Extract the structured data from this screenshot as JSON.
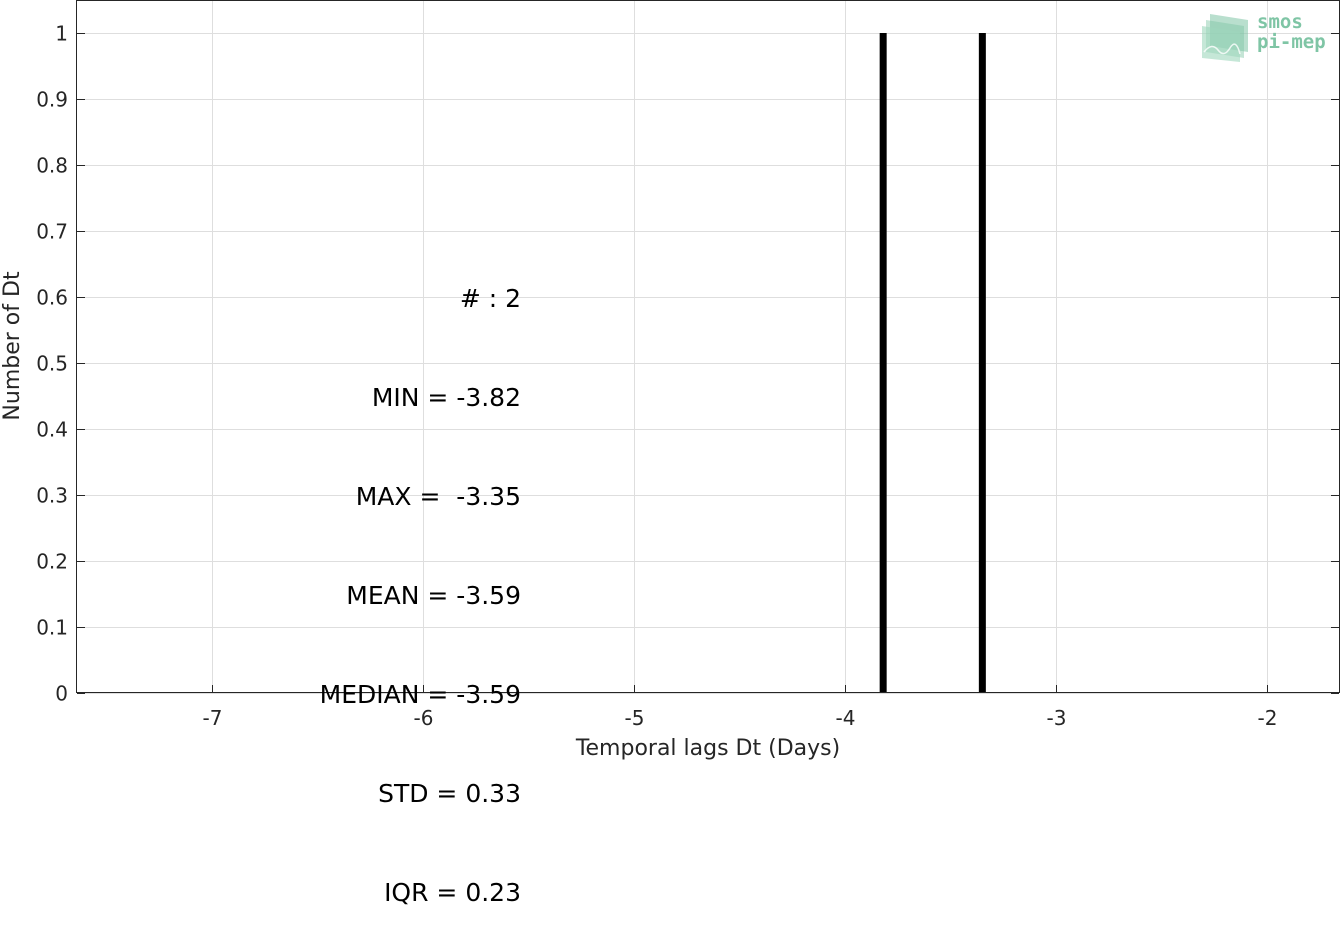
{
  "chart_data": {
    "type": "bar",
    "xlabel": "Temporal lags Dt (Days)",
    "ylabel": "Number of Dt",
    "xlim": [
      -7.64,
      -1.66
    ],
    "ylim": [
      0,
      1
    ],
    "xticks": [
      "-7",
      "-6",
      "-5",
      "-4",
      "-3",
      "-2"
    ],
    "yticks": [
      "0",
      "0.1",
      "0.2",
      "0.3",
      "0.4",
      "0.5",
      "0.6",
      "0.7",
      "0.8",
      "0.9",
      "1"
    ],
    "grid": true,
    "bars": [
      {
        "x": -3.82,
        "value": 1
      },
      {
        "x": -3.35,
        "value": 1
      }
    ],
    "bar_color": "#000000"
  },
  "stats": [
    "# : 2",
    "MIN = -3.82",
    "MAX =  -3.35",
    "MEAN = -3.59",
    "MEDIAN = -3.59",
    "STD = 0.33",
    "IQR = 0.23"
  ],
  "logo": {
    "line1": "smos",
    "line2": "pi-mep",
    "color": "#7fc5a5"
  }
}
